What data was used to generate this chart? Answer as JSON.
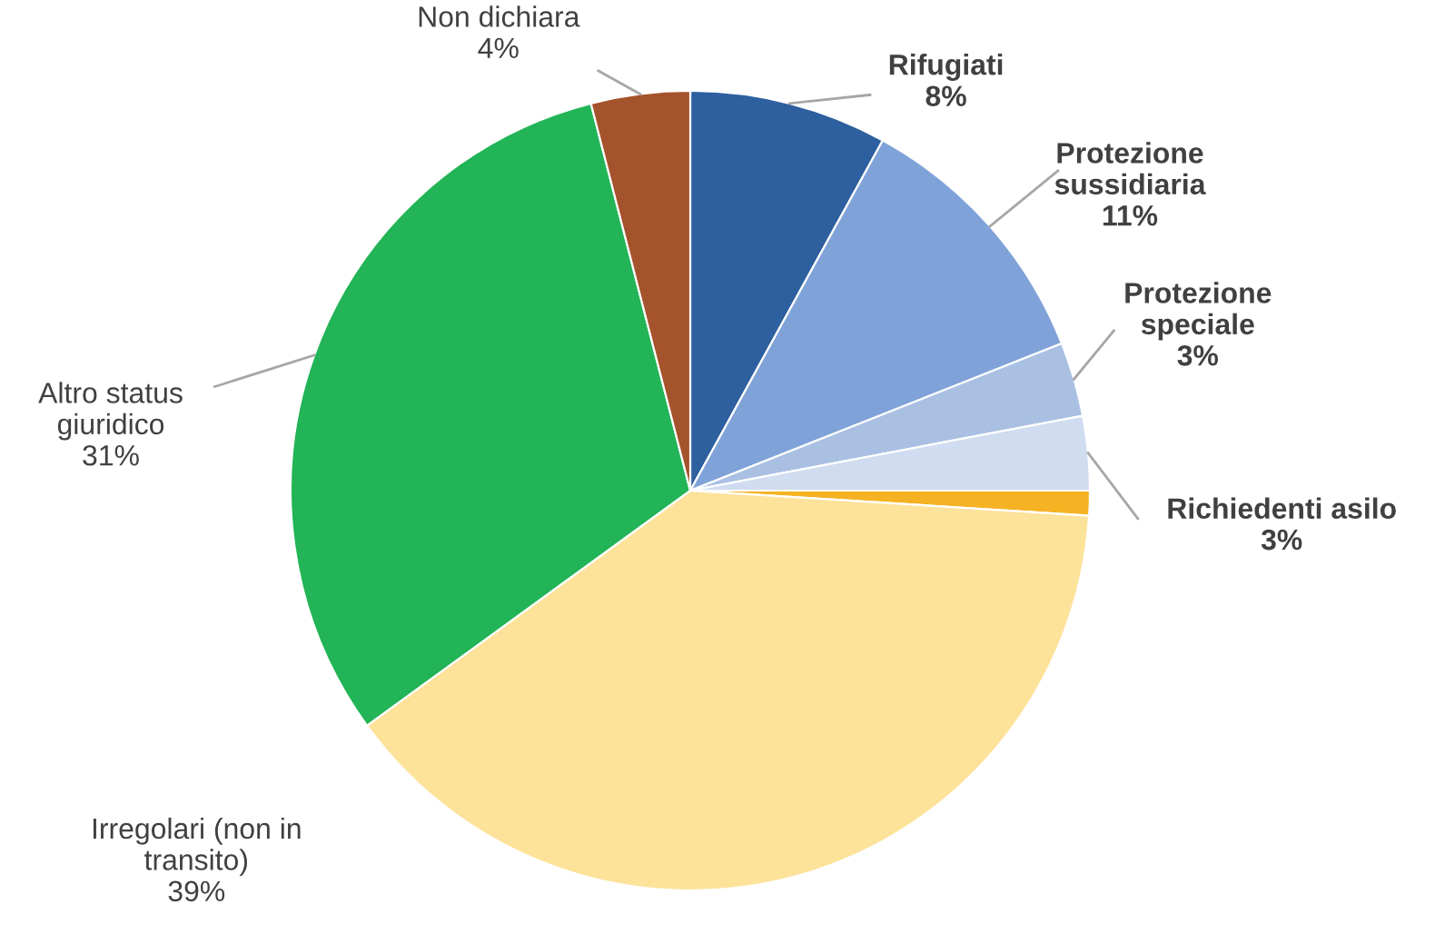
{
  "chart_data": {
    "type": "pie",
    "categories": [
      "Rifugiati",
      "Protezione\nsussidiaria",
      "Protezione\nspeciale",
      "Richiedenti asilo",
      null,
      "Irregolari (non in\ntransito)",
      "Altro status\ngiuridico",
      "Non dichiara"
    ],
    "values": [
      8,
      11,
      3,
      3,
      1,
      39,
      31,
      4
    ],
    "value_labels": [
      "8%",
      "11%",
      "3%",
      "3%",
      null,
      "39%",
      "31%",
      "4%"
    ],
    "colors": [
      "#2e5f9e",
      "#7fa3d8",
      "#a9c0e3",
      "#d0dcef",
      "#f5b324",
      "#fde29a",
      "#22b456",
      "#a5532c"
    ],
    "legend": false
  }
}
